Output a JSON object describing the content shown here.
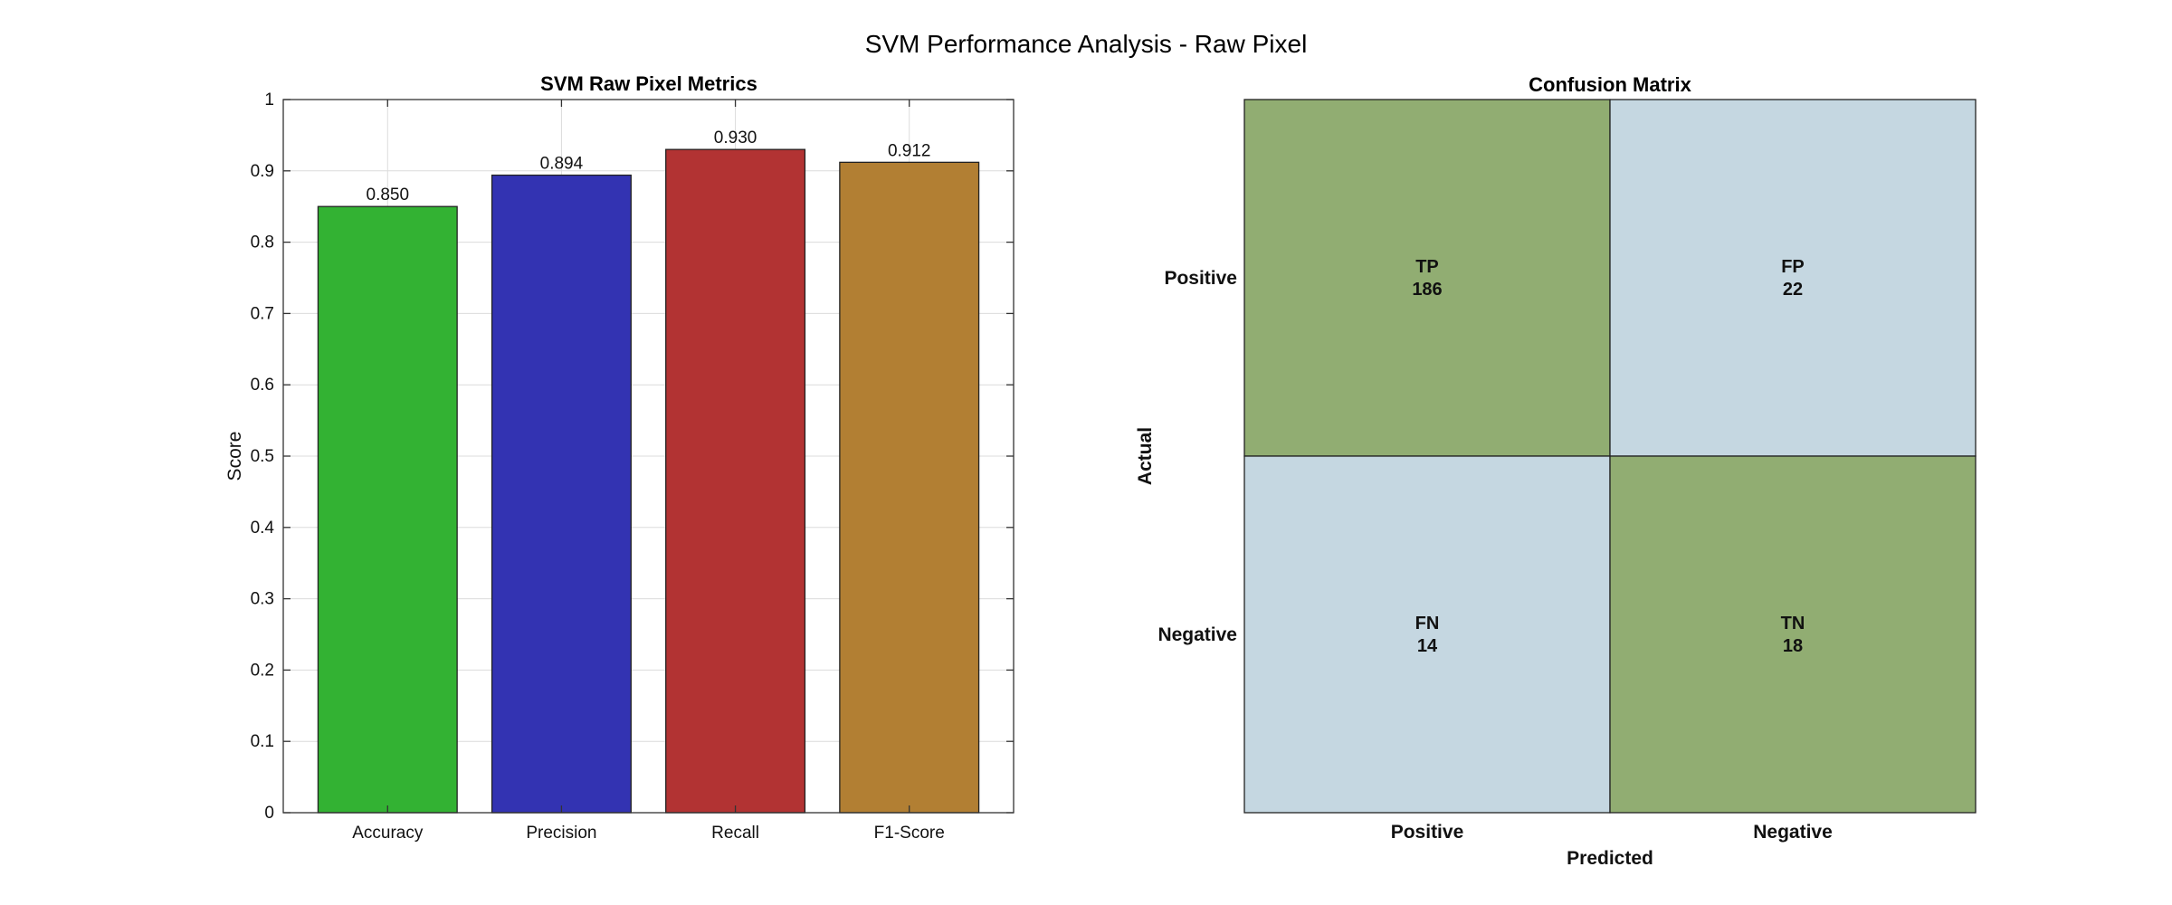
{
  "figure": {
    "suptitle": "SVM Performance Analysis - Raw Pixel"
  },
  "chart_data": [
    {
      "type": "bar",
      "title": "SVM Raw Pixel Metrics",
      "xlabel": "",
      "ylabel": "Score",
      "categories": [
        "Accuracy",
        "Precision",
        "Recall",
        "F1-Score"
      ],
      "values": [
        0.85,
        0.894,
        0.93,
        0.912
      ],
      "data_labels": [
        "0.850",
        "0.894",
        "0.930",
        "0.912"
      ],
      "colors": [
        "#33b233",
        "#3333b2",
        "#b23333",
        "#b27f33"
      ],
      "ylim": [
        0,
        1
      ],
      "yticks": [
        0,
        0.1,
        0.2,
        0.3,
        0.4,
        0.5,
        0.6,
        0.7,
        0.8,
        0.9,
        1
      ],
      "ytick_labels": [
        "0",
        "0.1",
        "0.2",
        "0.3",
        "0.4",
        "0.5",
        "0.6",
        "0.7",
        "0.8",
        "0.9",
        "1"
      ],
      "grid": true
    },
    {
      "type": "heatmap",
      "title": "Confusion Matrix",
      "xlabel": "Predicted",
      "ylabel": "Actual",
      "x_categories": [
        "Positive",
        "Negative"
      ],
      "y_categories": [
        "Positive",
        "Negative"
      ],
      "cells": [
        [
          {
            "label": "TP",
            "value": 186,
            "color": "#91ad72"
          },
          {
            "label": "FP",
            "value": 22,
            "color": "#c5d7e1"
          }
        ],
        [
          {
            "label": "FN",
            "value": 14,
            "color": "#c5d7e1"
          },
          {
            "label": "TN",
            "value": 18,
            "color": "#91ad72"
          }
        ]
      ],
      "grid": false
    }
  ]
}
